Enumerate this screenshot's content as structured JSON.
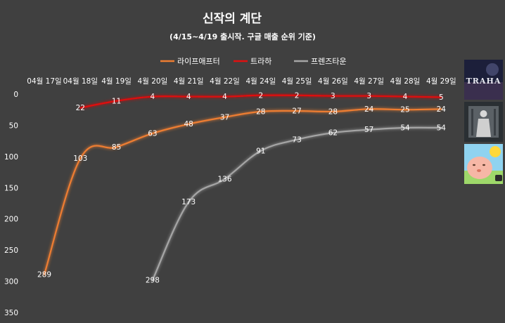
{
  "chart_data": {
    "type": "line",
    "title": "신작의 계단",
    "subtitle": "(4/15~4/19 출시작. 구글 매출 순위 기준)",
    "categories": [
      "04월 17일",
      "04월 18일",
      "4월 19일",
      "4월 20일",
      "4월 21일",
      "4월 22일",
      "4월 24일",
      "4월 25일",
      "4월 26일",
      "4월 27일",
      "4월 28일",
      "4월 29일"
    ],
    "ylim": [
      0,
      350
    ],
    "y_inverted": true,
    "y_ticks": [
      0,
      50,
      100,
      150,
      200,
      250,
      300,
      350
    ],
    "legend_position": "top",
    "grid": false,
    "series": [
      {
        "name": "라이프애프터",
        "color": "#ED7D31",
        "values": [
          289,
          103,
          85,
          63,
          48,
          37,
          28,
          27,
          28,
          24,
          25,
          24
        ]
      },
      {
        "name": "트라하",
        "color": "#E01010",
        "values": [
          null,
          22,
          11,
          4,
          4,
          4,
          2,
          2,
          3,
          3,
          4,
          5
        ]
      },
      {
        "name": "프렌즈타운",
        "color": "#A5A5A5",
        "values": [
          null,
          null,
          null,
          298,
          173,
          136,
          91,
          73,
          62,
          57,
          54,
          54
        ]
      }
    ]
  },
  "thumbnails": {
    "items": [
      {
        "icon": "traha-game-icon",
        "text": "TRAHA"
      },
      {
        "icon": "lifeafter-game-icon"
      },
      {
        "icon": "friendstown-game-icon"
      }
    ]
  }
}
